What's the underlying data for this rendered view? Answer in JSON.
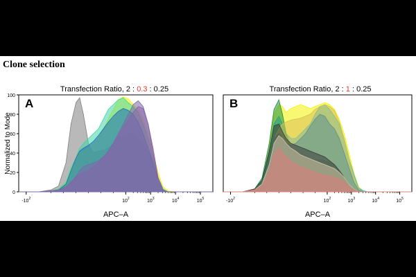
{
  "page_title": "Clone selection",
  "colors": {
    "black_bars": "#000000",
    "highlight": "#e8372c",
    "series": [
      "#7f7f7f",
      "#f2f200",
      "#3fd6a8",
      "#1c8f3c",
      "#1f6fb4",
      "#5f8f3f",
      "#29b6e0",
      "#b8d36a",
      "#d9bf52",
      "#e07a7a",
      "#7b6aa8",
      "#3a3a3a",
      "#9b5bb0",
      "#b8c8a8"
    ]
  },
  "chart_data": [
    {
      "panel_label": "A",
      "type": "area",
      "title_parts": [
        "Transfection Ratio, 2 : ",
        "0.3",
        " : 0.25"
      ],
      "xlabel": "APC–A",
      "ylabel": "Normalized to Mode",
      "xlim": [
        -2.3,
        5.5
      ],
      "ylim": [
        0,
        100
      ],
      "yticks": [
        "0",
        "20",
        "40",
        "60",
        "80",
        "100"
      ],
      "xticks": [
        {
          "pos": -2,
          "base": "-10",
          "exp": "2"
        },
        {
          "pos": 2,
          "base": "10",
          "exp": "2"
        },
        {
          "pos": 3,
          "base": "10",
          "exp": "3"
        },
        {
          "pos": 4,
          "base": "10",
          "exp": "4"
        },
        {
          "pos": 5,
          "base": "10",
          "exp": "5"
        }
      ],
      "x": [
        -2.3,
        -1.5,
        -1,
        -0.7,
        -0.4,
        -0.2,
        0,
        0.15,
        0.3,
        0.5,
        0.7,
        0.9,
        1.1,
        1.3,
        1.5,
        1.7,
        1.9,
        2.1,
        2.3,
        2.5,
        2.7,
        2.9,
        3.1,
        3.3,
        3.5,
        3.7,
        4,
        4.5,
        5.5
      ],
      "series": [
        {
          "name": "gray",
          "color": "#7f7f7f",
          "values": [
            0,
            0,
            2,
            6,
            30,
            70,
            92,
            97,
            80,
            50,
            40,
            42,
            43,
            45,
            50,
            55,
            58,
            60,
            60,
            55,
            50,
            40,
            30,
            15,
            3,
            0,
            0,
            0,
            0
          ]
        },
        {
          "name": "yellow",
          "color": "#f2f200",
          "values": [
            0,
            0,
            1,
            3,
            10,
            25,
            35,
            40,
            42,
            45,
            50,
            55,
            65,
            75,
            85,
            95,
            98,
            96,
            90,
            85,
            75,
            60,
            40,
            20,
            5,
            1,
            0,
            0,
            0
          ]
        },
        {
          "name": "aqua",
          "color": "#3fd6a8",
          "values": [
            0,
            0,
            1,
            3,
            10,
            25,
            35,
            45,
            50,
            55,
            60,
            65,
            75,
            85,
            90,
            95,
            97,
            92,
            88,
            82,
            70,
            55,
            35,
            15,
            3,
            0,
            0,
            0,
            0
          ]
        },
        {
          "name": "blue",
          "color": "#1f6fb4",
          "values": [
            0,
            0,
            1,
            2,
            8,
            22,
            35,
            42,
            45,
            48,
            52,
            58,
            65,
            72,
            78,
            83,
            86,
            84,
            80,
            72,
            60,
            45,
            30,
            12,
            2,
            0,
            0,
            0,
            0
          ]
        },
        {
          "name": "mauve",
          "color": "#9b5bb0",
          "values": [
            0,
            0,
            1,
            2,
            5,
            10,
            15,
            18,
            20,
            22,
            26,
            30,
            36,
            42,
            50,
            58,
            66,
            74,
            82,
            88,
            86,
            70,
            45,
            15,
            2,
            0,
            0,
            0,
            0
          ]
        },
        {
          "name": "gray-lavender",
          "color": "#7b6aa8",
          "values": [
            0,
            0,
            1,
            2,
            5,
            10,
            16,
            22,
            26,
            28,
            30,
            32,
            36,
            42,
            50,
            60,
            70,
            80,
            90,
            94,
            88,
            70,
            40,
            12,
            2,
            0,
            0,
            0,
            0
          ]
        }
      ]
    },
    {
      "panel_label": "B",
      "type": "area",
      "title_parts": [
        "Transfection Ratio, 2 : ",
        "1",
        " : 0.25"
      ],
      "xlabel": "APC–A",
      "ylabel": "",
      "xlim": [
        -2.3,
        5.5
      ],
      "ylim": [
        0,
        100
      ],
      "yticks": [],
      "xticks": [
        {
          "pos": -2,
          "base": "-10",
          "exp": "2"
        },
        {
          "pos": 2,
          "base": "10",
          "exp": "2"
        },
        {
          "pos": 3,
          "base": "10",
          "exp": "3"
        },
        {
          "pos": 4,
          "base": "10",
          "exp": "4"
        },
        {
          "pos": 5,
          "base": "10",
          "exp": "5"
        }
      ],
      "x": [
        -2.3,
        -1.5,
        -1,
        -0.7,
        -0.4,
        -0.2,
        0,
        0.15,
        0.3,
        0.5,
        0.7,
        0.9,
        1.1,
        1.3,
        1.5,
        1.7,
        1.9,
        2.1,
        2.3,
        2.5,
        2.7,
        2.9,
        3.1,
        3.3,
        3.5,
        3.7,
        4,
        4.5,
        5.5
      ],
      "series": [
        {
          "name": "yellow",
          "color": "#f2f200",
          "values": [
            0,
            0,
            2,
            10,
            45,
            80,
            90,
            88,
            82,
            86,
            88,
            90,
            88,
            86,
            88,
            90,
            92,
            90,
            85,
            75,
            60,
            40,
            20,
            5,
            1,
            0,
            0,
            0,
            0
          ]
        },
        {
          "name": "cyan",
          "color": "#29b6e0",
          "values": [
            0,
            0,
            2,
            10,
            40,
            70,
            78,
            70,
            60,
            55,
            55,
            60,
            65,
            70,
            80,
            88,
            90,
            85,
            78,
            70,
            55,
            35,
            18,
            4,
            1,
            0,
            0,
            0,
            0
          ]
        },
        {
          "name": "dark-green",
          "color": "#1c8f3c",
          "values": [
            0,
            0,
            3,
            14,
            50,
            85,
            95,
            80,
            60,
            45,
            40,
            38,
            36,
            34,
            33,
            33,
            32,
            30,
            28,
            22,
            14,
            6,
            2,
            0,
            0,
            0,
            0,
            0,
            0
          ]
        },
        {
          "name": "tan",
          "color": "#d9bf52",
          "values": [
            0,
            0,
            2,
            8,
            30,
            55,
            65,
            70,
            72,
            74,
            75,
            76,
            78,
            80,
            85,
            88,
            90,
            88,
            84,
            72,
            55,
            35,
            15,
            3,
            0,
            0,
            0,
            0,
            0
          ]
        },
        {
          "name": "teal-gray",
          "color": "#5f8f8f",
          "values": [
            0,
            0,
            2,
            8,
            30,
            55,
            60,
            55,
            50,
            48,
            50,
            55,
            60,
            68,
            75,
            80,
            78,
            70,
            65,
            55,
            40,
            25,
            10,
            2,
            0,
            0,
            0,
            0,
            0
          ]
        },
        {
          "name": "dark-gray",
          "color": "#3a3a3a",
          "values": [
            0,
            0,
            3,
            12,
            42,
            68,
            70,
            62,
            55,
            50,
            48,
            46,
            44,
            42,
            40,
            38,
            36,
            32,
            28,
            22,
            15,
            8,
            3,
            0,
            0,
            0,
            0,
            0,
            0
          ]
        },
        {
          "name": "beige",
          "color": "#d6c8a8",
          "values": [
            0,
            0,
            2,
            8,
            28,
            50,
            58,
            55,
            50,
            45,
            42,
            38,
            36,
            34,
            32,
            30,
            28,
            26,
            24,
            20,
            15,
            8,
            3,
            0,
            0,
            0,
            0,
            0,
            0
          ]
        },
        {
          "name": "pink-red",
          "color": "#e07a7a",
          "values": [
            0,
            0,
            2,
            6,
            20,
            38,
            45,
            40,
            36,
            32,
            28,
            26,
            24,
            22,
            20,
            18,
            17,
            16,
            15,
            13,
            10,
            5,
            2,
            0,
            0,
            0,
            0,
            0,
            0
          ]
        }
      ]
    }
  ]
}
